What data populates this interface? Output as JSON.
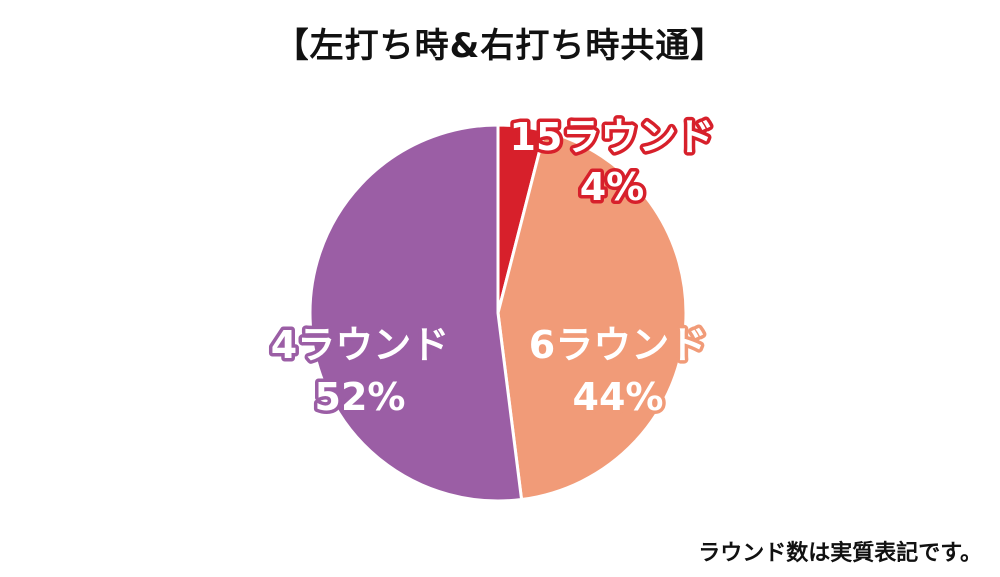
{
  "chart_data": {
    "type": "pie",
    "title": "【左打ち時&右打ち時共通】",
    "slices": [
      {
        "label": "15ラウンド",
        "value": 4,
        "value_label": "4%",
        "color": "#d7202b"
      },
      {
        "label": "6ラウンド",
        "value": 44,
        "value_label": "44%",
        "color": "#f19b78"
      },
      {
        "label": "4ラウンド",
        "value": 52,
        "value_label": "52%",
        "color": "#9b5ea5"
      }
    ],
    "start_angle": "12 o'clock",
    "direction": "clockwise",
    "legend": "none"
  },
  "footnote": "ラウンド数は実質表記です。"
}
